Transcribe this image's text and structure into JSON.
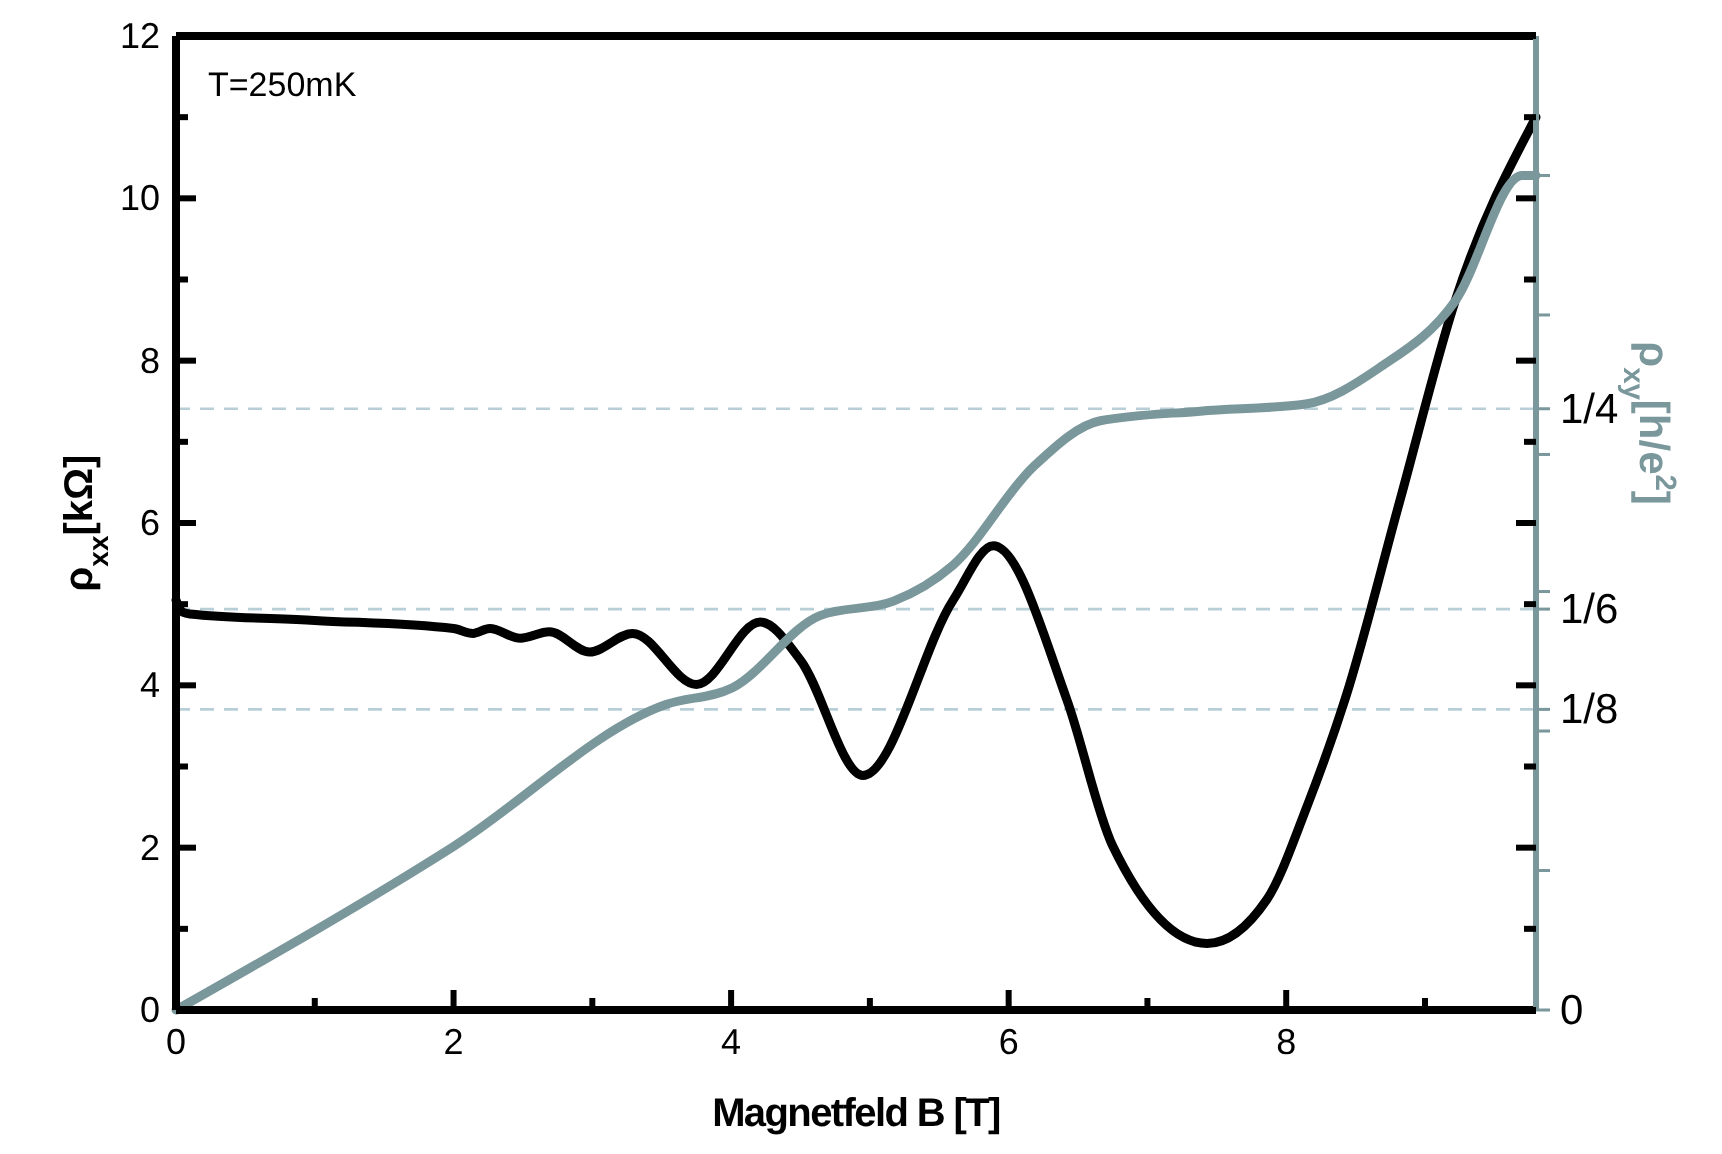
{
  "chart_data": {
    "type": "line",
    "xlabel": "Magnetfeld B [T]",
    "ylabel": "ρ$_{xx}$[kΩ]",
    "y2label": "ρ$_{xy}$[h/e$^{2}$]",
    "annotations": [
      "T=250mK"
    ],
    "xlim": [
      0,
      9.8
    ],
    "xticks": [
      0,
      {
        "value": 1,
        "label": null
      },
      2,
      {
        "value": 3,
        "label": null
      },
      4,
      {
        "value": 5,
        "label": null
      },
      6,
      {
        "value": 7,
        "label": null
      },
      8,
      {
        "value": 9,
        "label": null
      }
    ],
    "ylim": [
      0,
      12
    ],
    "yticks": [
      0,
      {
        "value": 1,
        "label": null
      },
      2,
      {
        "value": 3,
        "label": null
      },
      4,
      {
        "value": 5,
        "label": null
      },
      6,
      {
        "value": 7,
        "label": null
      },
      8,
      {
        "value": 9,
        "label": null
      },
      10,
      {
        "value": 11,
        "label": null
      },
      12
    ],
    "y2lim": [
      0,
      0.405
    ],
    "y2ticks": [
      0,
      {
        "value": 0.058,
        "label": null
      },
      {
        "value": 0.116,
        "label": null
      },
      {
        "value": 0.125,
        "label": "1/8"
      },
      {
        "value": 0.1667,
        "label": "1/6"
      },
      {
        "value": 0.174,
        "label": null
      },
      {
        "value": 0.231,
        "label": null
      },
      {
        "value": 0.25,
        "label": "1/4"
      },
      {
        "value": 0.289,
        "label": null
      },
      {
        "value": 0.347,
        "label": null
      }
    ],
    "ref_lines": [
      {
        "axis": "y2",
        "value": 0.25,
        "color": "#b9cfd8",
        "line_style": "dashed"
      },
      {
        "axis": "y2",
        "value": 0.1667,
        "color": "#b9cfd8",
        "line_style": "dashed"
      },
      {
        "axis": "y2",
        "value": 0.125,
        "color": "#b9cfd8",
        "line_style": "dashed"
      }
    ],
    "marker": "none",
    "line_style": "solid",
    "series": [
      {
        "color": "#000000",
        "x": [
          0,
          0.05,
          0.1,
          1,
          2,
          2.14,
          2.26,
          2.48,
          2.69,
          2.98,
          3.29,
          3.75,
          4.21,
          4.5,
          4.95,
          5.6,
          5.89,
          6.42,
          6.75,
          7.43,
          7.86,
          8.15,
          8.43,
          8.82,
          9.22,
          9.8
        ],
        "values": [
          5.05,
          4.9,
          4.88,
          4.8,
          4.7,
          4.64,
          4.7,
          4.58,
          4.66,
          4.41,
          4.64,
          4.01,
          4.78,
          4.31,
          2.89,
          5.05,
          5.72,
          3.82,
          2.02,
          0.82,
          1.36,
          2.51,
          3.86,
          6.28,
          8.75,
          11.0
        ]
      },
      {
        "color": "#7a979c",
        "axis": "y2",
        "x": [
          0,
          2,
          3.53,
          4.01,
          4.64,
          5.17,
          5.6,
          6.18,
          6.66,
          7.38,
          8.14,
          8.67,
          9.22,
          9.7,
          9.8
        ],
        "values": [
          0,
          0.068,
          0.127,
          0.134,
          0.164,
          0.17,
          0.185,
          0.226,
          0.245,
          0.249,
          0.252,
          0.267,
          0.295,
          0.347,
          0.347
        ]
      }
    ]
  }
}
